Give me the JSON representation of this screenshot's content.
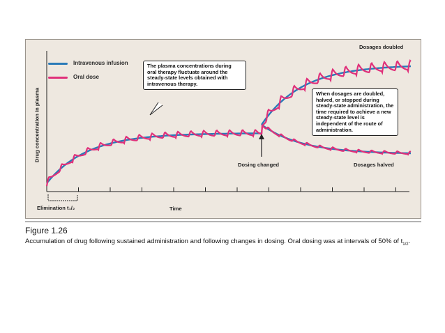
{
  "chart_data": {
    "type": "line",
    "ylabel": "Drug concentration in plasma",
    "xlabel": "Time",
    "x_marker_label": "Elimination t₁/₂",
    "series": [
      {
        "name": "Intravenous infusion",
        "color": "#2a7ab8"
      },
      {
        "name": "Oral dose",
        "color": "#e0307a"
      }
    ],
    "annotations": {
      "top_callout": "The plasma concentrations during oral therapy fluctuate around the steady-state levels obtained with intravenous therapy.",
      "right_callout": "When dosages are doubled, halved, or stopped during steady-state administration, the time required to achieve a new steady-state level is independent of the route of administration.",
      "dosing_changed": "Dosing changed",
      "dosages_doubled": "Dosages doubled",
      "dosages_halved": "Dosages halved"
    }
  },
  "caption": {
    "figure_number": "Figure 1.26",
    "text": "Accumulation of drug following sustained administration and following changes in dosing. Oral dosing was at intervals of 50% of t",
    "subscript": "1/2",
    "end": "."
  }
}
